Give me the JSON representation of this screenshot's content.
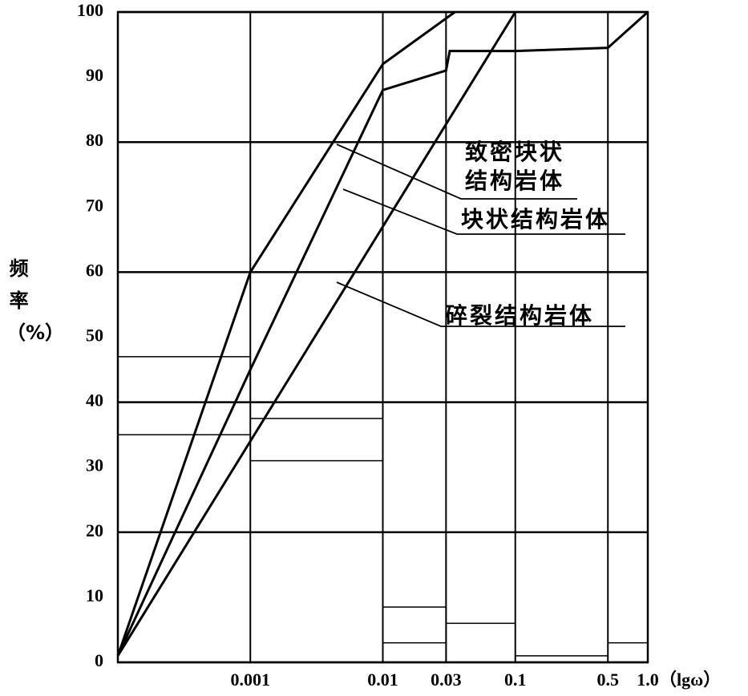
{
  "chart_data": {
    "type": "histogram-cumulative",
    "x_label": "（lgω）",
    "y_label": "频率（%）",
    "xscale": "log",
    "xlim": [
      0.0001,
      1
    ],
    "xticks": [
      0.001,
      0.01,
      0.03,
      0.1,
      0.5,
      {
        "value": 1,
        "label": "1.0"
      }
    ],
    "ylim": [
      0,
      100
    ],
    "yticks": [
      0,
      10,
      20,
      30,
      40,
      50,
      60,
      70,
      80,
      90,
      100
    ],
    "grid": true,
    "bars": {
      "x0": [
        0.0001,
        0.0001,
        0.0001,
        0.001,
        0.001,
        0.01,
        0.01,
        0.03,
        0.03,
        0.1,
        0.5
      ],
      "x1": [
        0.001,
        0.001,
        0.001,
        0.01,
        0.01,
        0.03,
        0.03,
        0.1,
        0.1,
        0.5,
        1
      ],
      "values": [
        47,
        40,
        35,
        37.5,
        31,
        8.5,
        3,
        20,
        6,
        1,
        3
      ]
    },
    "series": [
      {
        "name": "致密块状结构岩体",
        "color": "#000000",
        "x": [
          0.0001,
          0.001,
          0.01,
          0.035
        ],
        "values": [
          1,
          60,
          92,
          100
        ]
      },
      {
        "name": "块状结构岩体",
        "color": "#000000",
        "x": [
          0.0001,
          0.001,
          0.01,
          0.03,
          0.032,
          0.1,
          0.5,
          1
        ],
        "values": [
          1,
          45,
          88,
          91,
          94,
          94,
          94.5,
          100
        ]
      },
      {
        "name": "碎裂结构岩体",
        "color": "#000000",
        "x": [
          0.0001,
          0.1
        ],
        "values": [
          1,
          100
        ]
      }
    ]
  }
}
